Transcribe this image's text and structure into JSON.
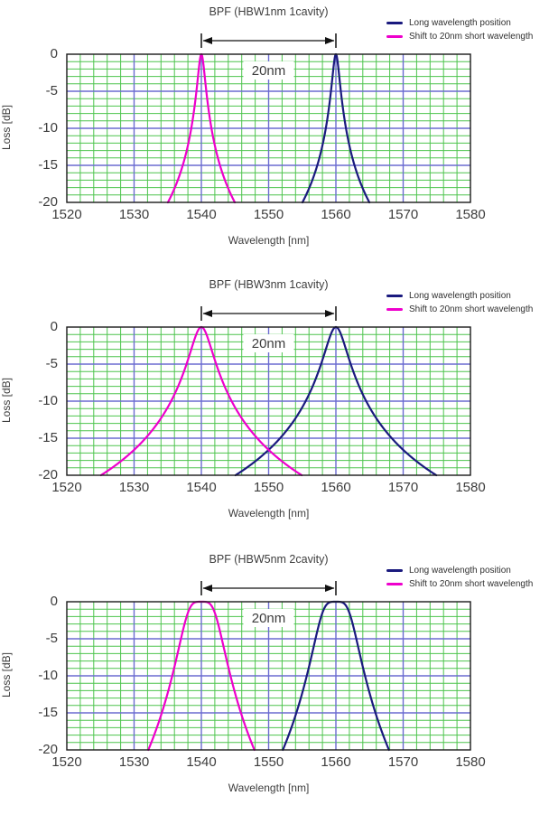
{
  "page": {
    "background": "#ffffff"
  },
  "legend": {
    "items": [
      {
        "key": "long",
        "label": "Long wavelength position",
        "color": "#1a1a7e"
      },
      {
        "key": "short",
        "label": "Shift to 20nm short wavelength",
        "color": "#ee00cc"
      }
    ]
  },
  "axes": {
    "x_label": "Wavelength [nm]",
    "y_label": "Loss [dB]",
    "x_ticks": [
      1520,
      1530,
      1540,
      1550,
      1560,
      1570,
      1580
    ],
    "y_ticks": [
      0,
      -5,
      -10,
      -15,
      -20
    ],
    "x_range": [
      1520,
      1580
    ],
    "y_range": [
      -20,
      0
    ],
    "x_minor_step_nm": 2,
    "y_minor_step_db": 1,
    "x_major_step_nm": 10,
    "y_major_step_db": 5,
    "grid_minor_color": "#4dc44d",
    "grid_major_color": "#6b6bd1",
    "border_color": "#1a1a1a"
  },
  "chart_data": [
    {
      "type": "line",
      "title": "BPF (HBW1nm 1cavity)",
      "xlabel": "Wavelength [nm]",
      "ylabel": "Loss [dB]",
      "xlim": [
        1520,
        1580
      ],
      "ylim": [
        -20,
        0
      ],
      "grid": true,
      "legend_position": "top-right",
      "model": "loss_db = -10*log10(1 + (2*(x-center_nm)/hbw_nm)^(2*cavities))",
      "hbw_nm": 1,
      "cavities": 1,
      "series": [
        {
          "name": "Long wavelength position",
          "color": "#1a1a7e",
          "center_nm": 1560,
          "peak_db": 0,
          "x_at_minus20db": [
            1555.0,
            1565.0
          ]
        },
        {
          "name": "Shift to 20nm short wavelength",
          "color": "#ee00cc",
          "center_nm": 1540,
          "peak_db": 0,
          "x_at_minus20db": [
            1535.0,
            1545.0
          ]
        }
      ],
      "annotation": {
        "label": "20nm",
        "from_nm": 1540,
        "to_nm": 1560
      }
    },
    {
      "type": "line",
      "title": "BPF (HBW3nm 1cavity)",
      "xlabel": "Wavelength [nm]",
      "ylabel": "Loss [dB]",
      "xlim": [
        1520,
        1580
      ],
      "ylim": [
        -20,
        0
      ],
      "grid": true,
      "legend_position": "top-right",
      "model": "loss_db = -10*log10(1 + (2*(x-center_nm)/hbw_nm)^(2*cavities))",
      "hbw_nm": 3,
      "cavities": 1,
      "series": [
        {
          "name": "Long wavelength position",
          "color": "#1a1a7e",
          "center_nm": 1560,
          "peak_db": 0,
          "x_at_minus20db": [
            1545.1,
            1574.9
          ]
        },
        {
          "name": "Shift to 20nm short wavelength",
          "color": "#ee00cc",
          "center_nm": 1540,
          "peak_db": 0,
          "x_at_minus20db": [
            1525.1,
            1554.9
          ]
        }
      ],
      "annotation": {
        "label": "20nm",
        "from_nm": 1540,
        "to_nm": 1560
      }
    },
    {
      "type": "line",
      "title": "BPF (HBW5nm 2cavity)",
      "xlabel": "Wavelength [nm]",
      "ylabel": "Loss [dB]",
      "xlim": [
        1520,
        1580
      ],
      "ylim": [
        -20,
        0
      ],
      "grid": true,
      "legend_position": "top-right",
      "model": "loss_db = -10*log10(1 + (2*(x-center_nm)/hbw_nm)^(2*cavities))",
      "hbw_nm": 5,
      "cavities": 2,
      "series": [
        {
          "name": "Long wavelength position",
          "color": "#1a1a7e",
          "center_nm": 1560,
          "peak_db": 0,
          "x_at_minus20db": [
            1552.1,
            1567.9
          ]
        },
        {
          "name": "Shift to 20nm short wavelength",
          "color": "#ee00cc",
          "center_nm": 1540,
          "peak_db": 0,
          "x_at_minus20db": [
            1532.1,
            1547.9
          ]
        }
      ],
      "annotation": {
        "label": "20nm",
        "from_nm": 1540,
        "to_nm": 1560
      }
    }
  ]
}
